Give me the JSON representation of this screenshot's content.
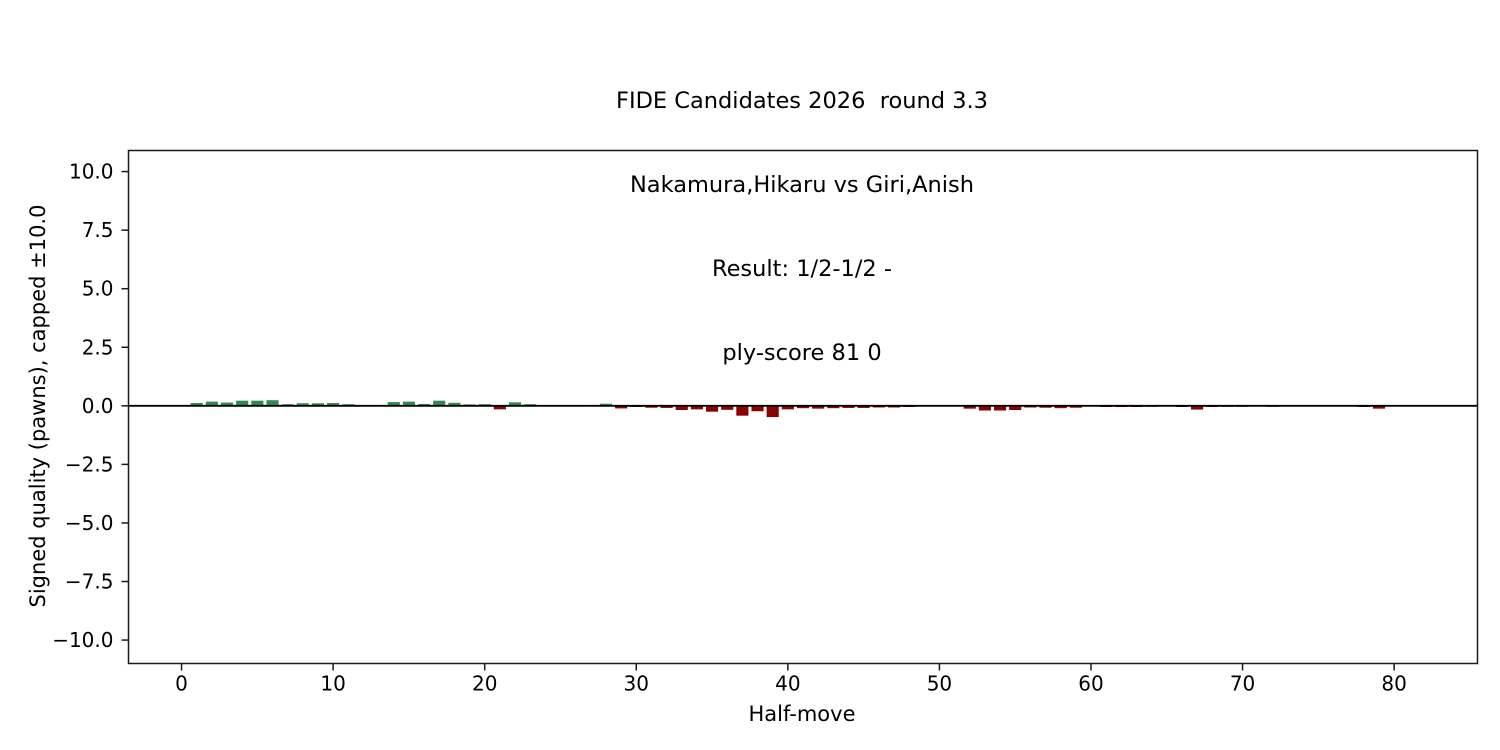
{
  "header": {
    "line1": "FIDE Candidates 2026  round 3.3",
    "line2": "Nakamura,Hikaru vs Giri,Anish",
    "line3": "Result: 1/2-1/2 -",
    "line4": "ply-score 81 0"
  },
  "chart_data": {
    "type": "bar",
    "title": "FIDE Candidates 2026  round 3.3\nNakamura,Hikaru vs Giri,Anish\nResult: 1/2-1/2 -\nply-score 81 0",
    "xlabel": "Half-move",
    "ylabel": "Signed quality (pawns), capped ±10.0",
    "x": [
      1,
      2,
      3,
      4,
      5,
      6,
      7,
      8,
      9,
      10,
      11,
      12,
      13,
      14,
      15,
      16,
      17,
      18,
      19,
      20,
      21,
      22,
      23,
      24,
      25,
      26,
      27,
      28,
      29,
      30,
      31,
      32,
      33,
      34,
      35,
      36,
      37,
      38,
      39,
      40,
      41,
      42,
      43,
      44,
      45,
      46,
      47,
      48,
      49,
      50,
      51,
      52,
      53,
      54,
      55,
      56,
      57,
      58,
      59,
      60,
      61,
      62,
      63,
      64,
      65,
      66,
      67,
      68,
      69,
      70,
      71,
      72,
      73,
      74,
      75,
      76,
      77,
      78,
      79,
      80,
      81
    ],
    "values": [
      0.12,
      0.18,
      0.14,
      0.22,
      0.22,
      0.24,
      0.07,
      0.11,
      0.11,
      0.12,
      0.07,
      0.02,
      0.02,
      0.16,
      0.18,
      0.08,
      0.22,
      0.13,
      0.06,
      0.07,
      -0.15,
      0.15,
      0.07,
      0.02,
      0,
      -0.02,
      0,
      0.09,
      -0.11,
      -0.05,
      -0.08,
      -0.09,
      -0.18,
      -0.15,
      -0.25,
      -0.17,
      -0.42,
      -0.23,
      -0.48,
      -0.15,
      -0.1,
      -0.12,
      -0.1,
      -0.09,
      -0.09,
      -0.07,
      -0.07,
      -0.05,
      -0.02,
      -0.02,
      -0.02,
      -0.12,
      -0.2,
      -0.2,
      -0.18,
      -0.07,
      -0.08,
      -0.1,
      -0.08,
      -0.03,
      -0.05,
      -0.05,
      -0.05,
      -0.04,
      -0.02,
      -0.05,
      -0.16,
      -0.05,
      -0.04,
      -0.04,
      -0.02,
      -0.04,
      -0.02,
      -0.02,
      -0.02,
      -0.02,
      -0.02,
      -0.05,
      -0.12,
      -0.02,
      -0.02
    ],
    "colors": {
      "positive": "#2e8b57",
      "negative": "#8b0000",
      "zero_line": "#000000",
      "frame": "#1a1a1a"
    },
    "xlim": [
      -3.5,
      85.5
    ],
    "ylim": [
      -11.0,
      10.9
    ],
    "xticks": [
      0,
      10,
      20,
      30,
      40,
      50,
      60,
      70,
      80
    ],
    "yticks": [
      10.0,
      7.5,
      5.0,
      2.5,
      0.0,
      -2.5,
      -5.0,
      -7.5,
      -10.0
    ],
    "bar_width": 0.8,
    "grid": false,
    "zero_line": true,
    "legend": null
  }
}
